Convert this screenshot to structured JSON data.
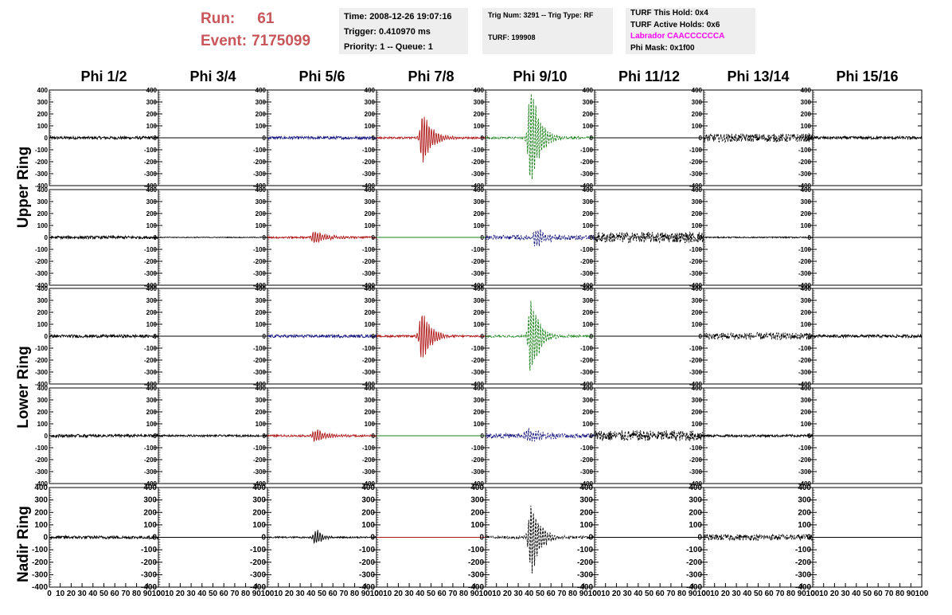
{
  "header": {
    "run_label": "Run:",
    "run_value": "61",
    "event_label": "Event:",
    "event_value": "7175099"
  },
  "info_time": {
    "time": "Time: 2008-12-26 19:07:16",
    "trigger": "Trigger: 0.410970 ms",
    "priority": "Priority: 1 -- Queue: 1"
  },
  "info_trig": {
    "trig": "Trig Num: 3291 -- Trig Type: RF",
    "turf": "TURF: 199908"
  },
  "info_turf": {
    "hold": "TURF This Hold: 0x4",
    "active": "TURF Active Holds: 0x6",
    "labrador": "Labrador CAACCCCCCA",
    "phimask": "Phi Mask: 0x1f00"
  },
  "columns": [
    "Phi 1/2",
    "Phi 3/4",
    "Phi 5/6",
    "Phi 7/8",
    "Phi 9/10",
    "Phi 11/12",
    "Phi 13/14",
    "Phi 15/16"
  ],
  "rings": [
    "Upper Ring",
    "Lower Ring",
    "Nadir Ring"
  ],
  "colors": {
    "black": "#000000",
    "blue": "#1a1a80",
    "red": "#b01818",
    "green": "#188018",
    "run_text": "#c8565a",
    "magenta": "#ff00ff"
  },
  "axes": {
    "y_ticks": [
      "400",
      "300",
      "200",
      "100",
      "0",
      "-100",
      "-200",
      "-300",
      "-400"
    ],
    "x_ticks": [
      "0",
      "10",
      "20",
      "30",
      "40",
      "50",
      "60",
      "70",
      "80",
      "90",
      "100"
    ],
    "x_range": [
      0,
      100
    ],
    "y_range": [
      -400,
      400
    ]
  },
  "chart_data": {
    "type": "line",
    "rows": [
      [
        {
          "color": "black",
          "amp": 12,
          "pulse": 0,
          "center": 50,
          "width": 10,
          "dashed": false
        },
        {
          "color": "black",
          "amp": 0,
          "pulse": 0,
          "center": 50,
          "width": 10,
          "dashed": false
        },
        {
          "color": "blue",
          "amp": 12,
          "pulse": 0,
          "center": 50,
          "width": 10,
          "dashed": false
        },
        {
          "color": "red",
          "amp": 8,
          "pulse": 190,
          "center": 44,
          "width": 8,
          "dashed": false
        },
        {
          "color": "green",
          "amp": 10,
          "pulse": 400,
          "center": 43,
          "width": 7,
          "dashed": true
        },
        {
          "color": "black",
          "amp": 0,
          "pulse": 0,
          "center": 50,
          "width": 10,
          "dashed": false
        },
        {
          "color": "black",
          "amp": 35,
          "pulse": 0,
          "center": 50,
          "width": 10,
          "dashed": true
        },
        {
          "color": "black",
          "amp": 12,
          "pulse": 0,
          "center": 50,
          "width": 10,
          "dashed": false
        }
      ],
      [
        {
          "color": "black",
          "amp": 12,
          "pulse": 0,
          "center": 50,
          "width": 10,
          "dashed": false
        },
        {
          "color": "black",
          "amp": 3,
          "pulse": 0,
          "center": 50,
          "width": 10,
          "dashed": false
        },
        {
          "color": "red",
          "amp": 8,
          "pulse": 45,
          "center": 44,
          "width": 12,
          "dashed": false
        },
        {
          "color": "green",
          "amp": 0,
          "pulse": 0,
          "center": 50,
          "width": 10,
          "dashed": false
        },
        {
          "color": "blue",
          "amp": 20,
          "pulse": 60,
          "center": 47,
          "width": 12,
          "dashed": true
        },
        {
          "color": "black",
          "amp": 45,
          "pulse": 0,
          "center": 50,
          "width": 10,
          "dashed": true
        },
        {
          "color": "black",
          "amp": 5,
          "pulse": 0,
          "center": 50,
          "width": 10,
          "dashed": false
        },
        {
          "color": "black",
          "amp": 0,
          "pulse": 0,
          "center": 50,
          "width": 10,
          "dashed": false
        }
      ],
      [
        {
          "color": "black",
          "amp": 12,
          "pulse": 0,
          "center": 50,
          "width": 10,
          "dashed": false
        },
        {
          "color": "black",
          "amp": 0,
          "pulse": 0,
          "center": 50,
          "width": 10,
          "dashed": false
        },
        {
          "color": "blue",
          "amp": 12,
          "pulse": 0,
          "center": 50,
          "width": 10,
          "dashed": false
        },
        {
          "color": "red",
          "amp": 8,
          "pulse": 180,
          "center": 43,
          "width": 8,
          "dashed": false
        },
        {
          "color": "green",
          "amp": 10,
          "pulse": 300,
          "center": 43,
          "width": 7,
          "dashed": true
        },
        {
          "color": "black",
          "amp": 0,
          "pulse": 0,
          "center": 50,
          "width": 10,
          "dashed": false
        },
        {
          "color": "black",
          "amp": 30,
          "pulse": 0,
          "center": 50,
          "width": 10,
          "dashed": true
        },
        {
          "color": "black",
          "amp": 12,
          "pulse": 0,
          "center": 50,
          "width": 10,
          "dashed": false
        }
      ],
      [
        {
          "color": "black",
          "amp": 12,
          "pulse": 0,
          "center": 50,
          "width": 10,
          "dashed": false
        },
        {
          "color": "black",
          "amp": 8,
          "pulse": 0,
          "center": 50,
          "width": 10,
          "dashed": false
        },
        {
          "color": "red",
          "amp": 8,
          "pulse": 45,
          "center": 45,
          "width": 12,
          "dashed": false
        },
        {
          "color": "green",
          "amp": 0,
          "pulse": 0,
          "center": 50,
          "width": 10,
          "dashed": false
        },
        {
          "color": "blue",
          "amp": 20,
          "pulse": 55,
          "center": 40,
          "width": 12,
          "dashed": true
        },
        {
          "color": "black",
          "amp": 45,
          "pulse": 0,
          "center": 50,
          "width": 10,
          "dashed": true
        },
        {
          "color": "black",
          "amp": 10,
          "pulse": 0,
          "center": 50,
          "width": 10,
          "dashed": false
        },
        {
          "color": "black",
          "amp": 0,
          "pulse": 0,
          "center": 50,
          "width": 10,
          "dashed": false
        }
      ],
      [
        {
          "color": "black",
          "amp": 12,
          "pulse": 0,
          "center": 50,
          "width": 10,
          "dashed": false
        },
        {
          "color": "black",
          "amp": 0,
          "pulse": 0,
          "center": 50,
          "width": 10,
          "dashed": false
        },
        {
          "color": "black",
          "amp": 6,
          "pulse": 50,
          "center": 46,
          "width": 5,
          "dashed": false
        },
        {
          "color": "red",
          "amp": 0,
          "pulse": 0,
          "center": 50,
          "width": 10,
          "dashed": false
        },
        {
          "color": "black",
          "amp": 10,
          "pulse": 250,
          "center": 43,
          "width": 8,
          "dashed": true
        },
        {
          "color": "black",
          "amp": 0,
          "pulse": 0,
          "center": 50,
          "width": 10,
          "dashed": false
        },
        {
          "color": "black",
          "amp": 25,
          "pulse": 0,
          "center": 50,
          "width": 10,
          "dashed": true
        },
        {
          "color": "black",
          "amp": 0,
          "pulse": 0,
          "center": 50,
          "width": 10,
          "dashed": false
        }
      ]
    ]
  }
}
